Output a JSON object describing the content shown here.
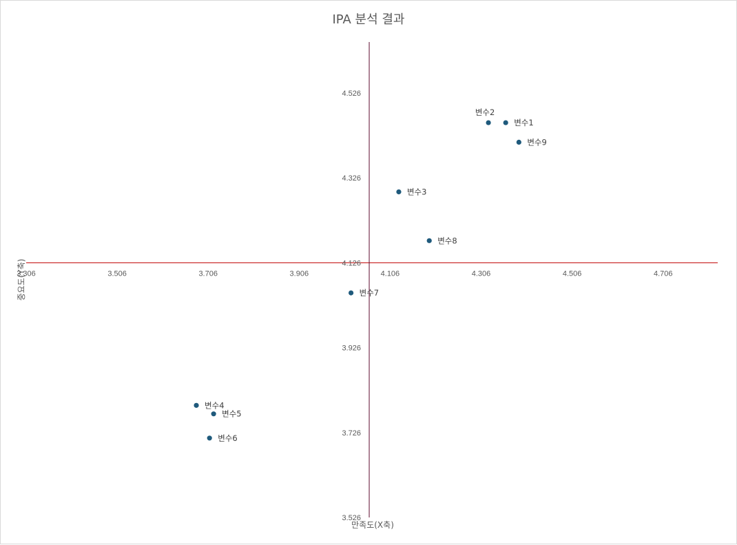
{
  "chart_data": {
    "type": "scatter",
    "title": "IPA 분석 결과",
    "xlabel": "만족도(X축)",
    "ylabel": "중요도(Y축)",
    "xlim": [
      3.306,
      4.826
    ],
    "ylim": [
      3.526,
      4.646
    ],
    "x_ticks": [
      "3.306",
      "3.506",
      "3.706",
      "3.906",
      "4.106",
      "4.306",
      "4.506",
      "4.706"
    ],
    "y_ticks": [
      "3.526",
      "3.726",
      "3.926",
      "4.126",
      "4.326",
      "4.526"
    ],
    "x_crosses_at": 4.126,
    "y_crosses_at": 4.06,
    "grid": false,
    "legend": "none",
    "point_color": "#1f5a7c",
    "x_axis_line_color": "#c00000",
    "y_axis_line_color": "#5c0a2e",
    "points": [
      {
        "label": "변수1",
        "x": 4.36,
        "y": 4.456,
        "label_pos": "right"
      },
      {
        "label": "변수2",
        "x": 4.322,
        "y": 4.456,
        "label_pos": "above"
      },
      {
        "label": "변수3",
        "x": 4.125,
        "y": 4.293,
        "label_pos": "right"
      },
      {
        "label": "변수4",
        "x": 3.68,
        "y": 3.79,
        "label_pos": "right"
      },
      {
        "label": "변수5",
        "x": 3.718,
        "y": 3.77,
        "label_pos": "right"
      },
      {
        "label": "변수6",
        "x": 3.709,
        "y": 3.713,
        "label_pos": "right"
      },
      {
        "label": "변수7",
        "x": 4.02,
        "y": 4.055,
        "label_pos": "right"
      },
      {
        "label": "변수8",
        "x": 4.192,
        "y": 4.178,
        "label_pos": "right"
      },
      {
        "label": "변수9",
        "x": 4.389,
        "y": 4.41,
        "label_pos": "right"
      }
    ]
  }
}
